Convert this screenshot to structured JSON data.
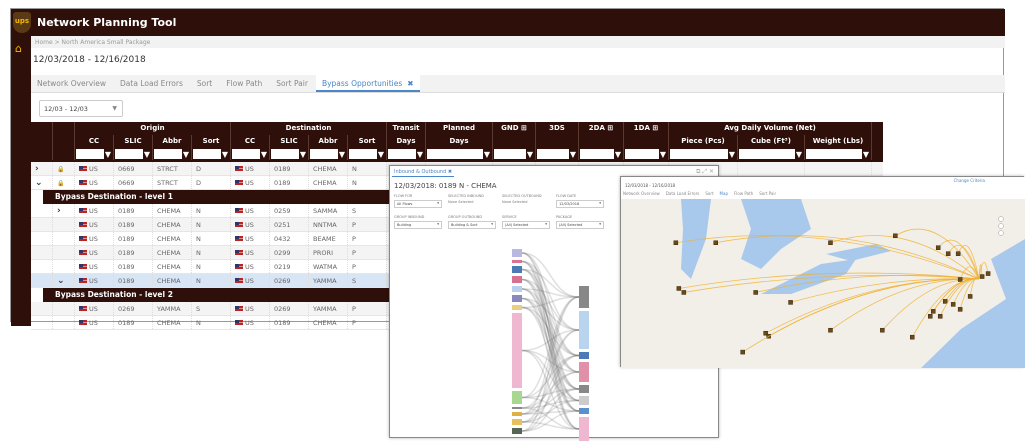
{
  "app": {
    "title": "Network Planning Tool",
    "logo_text": "ups",
    "breadcrumb": "Home > North America Small Package",
    "date_range": "12/03/2018 - 12/16/2018"
  },
  "tabs": [
    {
      "label": "Network Overview"
    },
    {
      "label": "Data Load Errors"
    },
    {
      "label": "Sort"
    },
    {
      "label": "Flow Path"
    },
    {
      "label": "Sort Pair"
    },
    {
      "label": "Bypass Opportunities",
      "active": true,
      "close": "✖"
    }
  ],
  "period_select": {
    "value": "12/03 - 12/03"
  },
  "grid": {
    "groups": [
      "",
      "",
      "Origin",
      "Destination",
      "Transit",
      "Planned",
      "GND ⊞",
      "3DS",
      "2DA ⊞",
      "1DA ⊞",
      "Avg Daily Volume (Net)"
    ],
    "columns": [
      "",
      "",
      "CC",
      "SLIC",
      "Abbr",
      "Sort",
      "CC",
      "SLIC",
      "Abbr",
      "Sort",
      "Days",
      "Days",
      "",
      "",
      "",
      "",
      "Piece (Pcs)",
      "Cube (Ft³)",
      "Weight (Lbs)"
    ],
    "band1": "Bypass Destination - level 1",
    "band2": "Bypass Destination - level 2",
    "rows_top": [
      {
        "exp": "›",
        "lock": true,
        "o": [
          "US",
          "0669",
          "STRCT",
          "D"
        ],
        "d": [
          "US",
          "0189",
          "CHEMA",
          "N"
        ]
      },
      {
        "exp": "⌄",
        "lock": true,
        "o": [
          "US",
          "0669",
          "STRCT",
          "D"
        ],
        "d": [
          "US",
          "0189",
          "CHEMA",
          "N"
        ]
      }
    ],
    "rows_l1": [
      {
        "exp": "›",
        "o": [
          "US",
          "0189",
          "CHEMA",
          "N"
        ],
        "d": [
          "US",
          "0259",
          "SAMMA",
          "S"
        ]
      },
      {
        "o": [
          "US",
          "0189",
          "CHEMA",
          "N"
        ],
        "d": [
          "US",
          "0251",
          "NNTMA",
          "P"
        ]
      },
      {
        "o": [
          "US",
          "0189",
          "CHEMA",
          "N"
        ],
        "d": [
          "US",
          "0432",
          "BEAME",
          "P"
        ]
      },
      {
        "o": [
          "US",
          "0189",
          "CHEMA",
          "N"
        ],
        "d": [
          "US",
          "0299",
          "PRORI",
          "P"
        ]
      },
      {
        "o": [
          "US",
          "0189",
          "CHEMA",
          "N"
        ],
        "d": [
          "US",
          "0219",
          "WATMA",
          "P"
        ]
      },
      {
        "exp": "⌄",
        "hl": true,
        "o": [
          "US",
          "0189",
          "CHEMA",
          "N"
        ],
        "d": [
          "US",
          "0269",
          "YAMMA",
          "S"
        ]
      }
    ],
    "rows_l2": [
      {
        "o": [
          "US",
          "0269",
          "YAMMA",
          "S"
        ],
        "d": [
          "US",
          "0269",
          "YAMMA",
          "P"
        ]
      },
      {
        "o": [
          "US",
          "0189",
          "CHEMA",
          "N"
        ],
        "d": [
          "US",
          "0189",
          "CHEMA",
          "P"
        ]
      }
    ]
  },
  "popup": {
    "tab": "Inbound & Outbound",
    "close": "✖",
    "title": "12/03/2018: 0189 N - CHEMA",
    "filters": [
      {
        "label": "FLOW FOR",
        "value": "All Flows",
        "select": true
      },
      {
        "label": "SELECTED INBOUND",
        "value": "None Selected"
      },
      {
        "label": "SELECTED OUTBOUND",
        "value": "None Selected"
      },
      {
        "label": "FLOW DATE",
        "value": "12/03/2018",
        "select": true
      },
      {
        "label": "GROUP INBOUND",
        "value": "Building",
        "select": true
      },
      {
        "label": "GROUP OUTBOUND",
        "value": "Building & Sort",
        "select": true
      },
      {
        "label": "SERVICE",
        "value": "(All) Selected",
        "select": true
      },
      {
        "label": "PACKAGE",
        "value": "(All) Selected",
        "select": true
      }
    ],
    "sankey_left_colors": [
      "#b8b8e0",
      "#e07090",
      "#4a7ab8",
      "#d87090",
      "#b8d0ee",
      "#8888bb",
      "#e8d080",
      "#f0b8d0",
      "#a8d890",
      "#888",
      "#e0b040",
      "#e8c060",
      "#556655"
    ],
    "sankey_right_colors": [
      "#888",
      "#b8d4ee",
      "#4a7ab8",
      "#e090a8",
      "#888",
      "#ccc",
      "#5a90d0",
      "#f0b8d0"
    ]
  },
  "map_window": {
    "date_range": "12/03/2018 - 12/16/2018",
    "tabs": [
      "Network Overview",
      "Data Load Errors",
      "Sort",
      "Map",
      "Flow Path",
      "Sort Pair"
    ],
    "active_tab": "Map",
    "link": "Change Criteria",
    "route_color": "#f0b030",
    "water_color": "#a8c8ec",
    "land_color": "#f2efe8"
  }
}
